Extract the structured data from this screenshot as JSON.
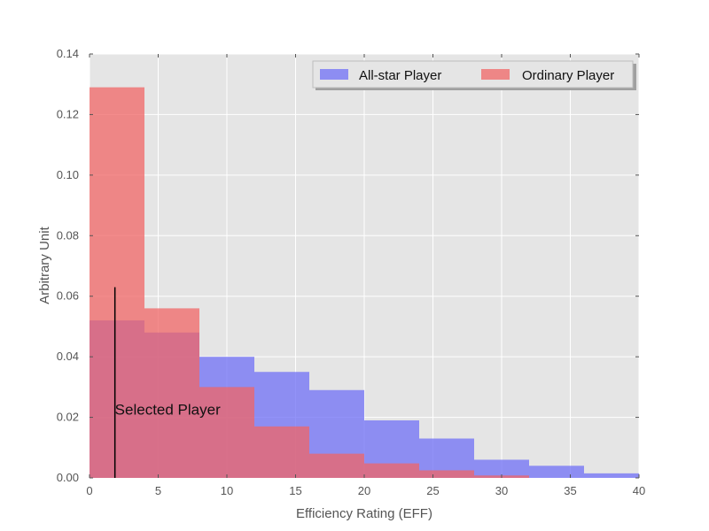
{
  "chart_data": {
    "type": "histogram",
    "title": "",
    "xlabel": "Efficiency Rating (EFF)",
    "ylabel": "Arbitrary Unit",
    "xlim": [
      0,
      40
    ],
    "ylim": [
      0,
      0.14
    ],
    "grid": true,
    "x_ticks": [
      "0",
      "5",
      "10",
      "15",
      "20",
      "25",
      "30",
      "35",
      "40"
    ],
    "y_ticks": [
      "0.00",
      "0.02",
      "0.04",
      "0.06",
      "0.08",
      "0.10",
      "0.12",
      "0.14"
    ],
    "bin_edges": [
      0,
      4,
      8,
      12,
      16,
      20,
      24,
      28,
      32,
      36,
      40
    ],
    "series": [
      {
        "name": "All-star Player",
        "color": "#6f6ff5",
        "values": [
          0.052,
          0.048,
          0.04,
          0.035,
          0.029,
          0.019,
          0.013,
          0.006,
          0.004,
          0.0015
        ]
      },
      {
        "name": "Ordinary Player",
        "color": "#f06666",
        "values": [
          0.129,
          0.056,
          0.03,
          0.017,
          0.008,
          0.0048,
          0.0025,
          0.0008,
          0,
          0
        ]
      }
    ],
    "legend_position": "top-right",
    "annotation": {
      "text": "Selected Player",
      "x": 1.85,
      "y_from": 0,
      "y_to": 0.063
    }
  }
}
